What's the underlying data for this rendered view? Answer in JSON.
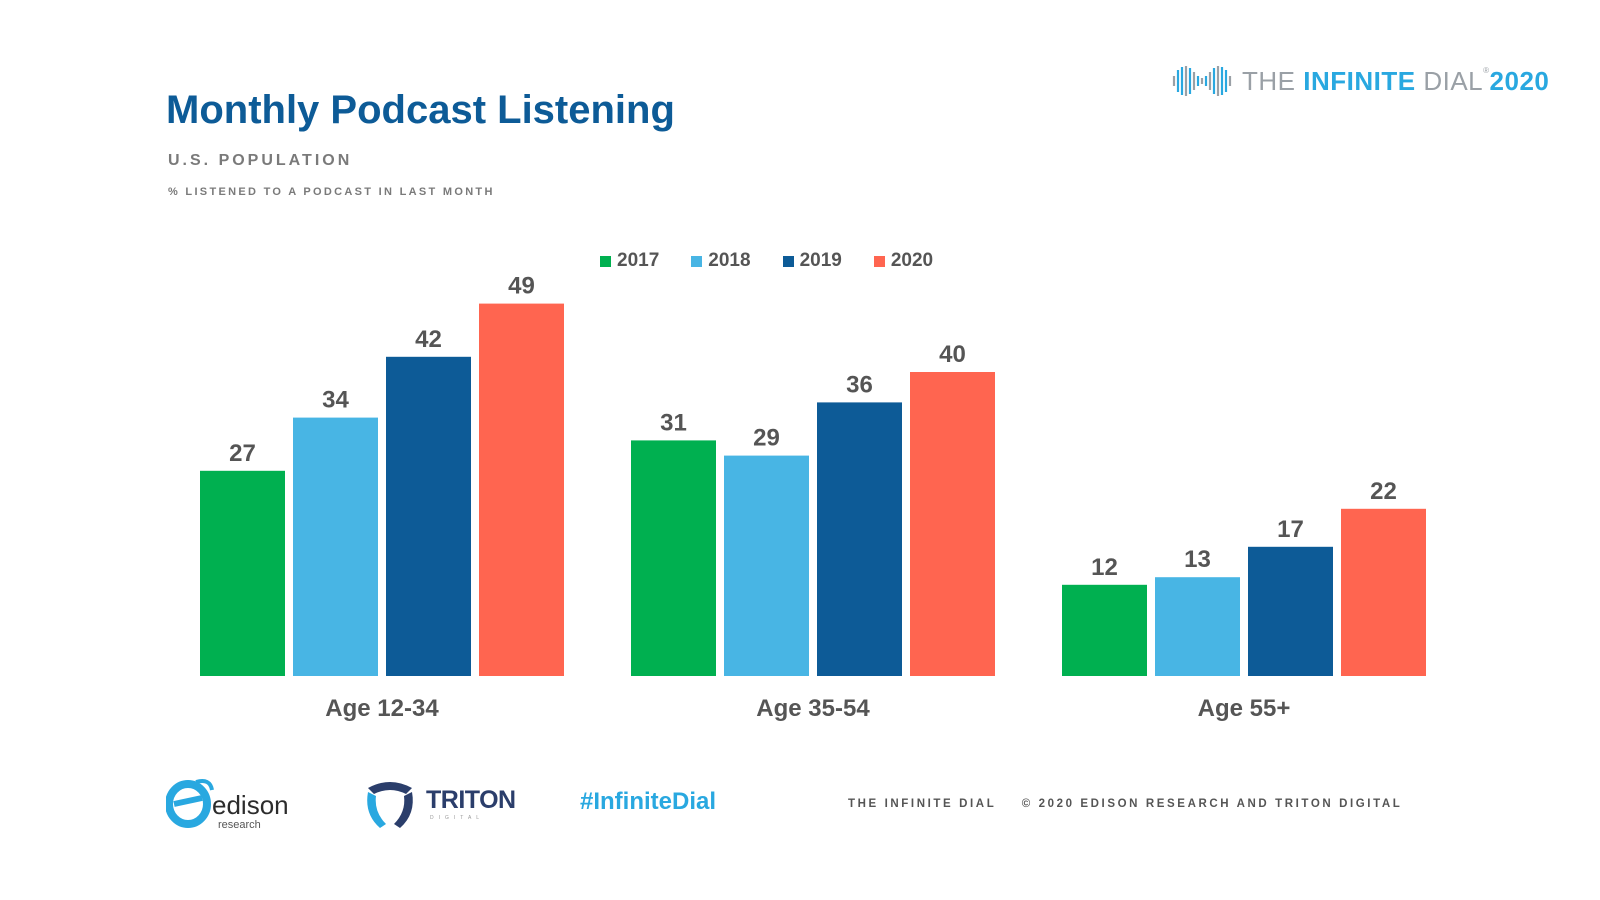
{
  "header": {
    "title": "Monthly Podcast Listening",
    "subtitle": "U.S. POPULATION",
    "measure": "% LISTENED TO A PODCAST IN LAST MONTH"
  },
  "brand": {
    "the": "THE",
    "infinite": "INFINITE",
    "dial": "DIAL",
    "tm": "®",
    "year": "2020"
  },
  "chart_data": {
    "type": "bar",
    "categories": [
      "Age 12-34",
      "Age 35-54",
      "Age 55+"
    ],
    "series": [
      {
        "name": "2017",
        "color": "#00b050",
        "values": [
          27,
          31,
          12
        ]
      },
      {
        "name": "2018",
        "color": "#48b5e4",
        "values": [
          34,
          29,
          13
        ]
      },
      {
        "name": "2019",
        "color": "#0d5b97",
        "values": [
          42,
          36,
          17
        ]
      },
      {
        "name": "2020",
        "color": "#ff6550",
        "values": [
          49,
          40,
          22
        ]
      }
    ],
    "title": "Monthly Podcast Listening",
    "xlabel": "",
    "ylabel": "",
    "ylim": [
      0,
      55
    ],
    "grid": false,
    "legend": "top-center",
    "data_labels": true
  },
  "footer": {
    "edison_word": "edison",
    "edison_sub": "research",
    "triton_word": "TRITON",
    "triton_sub": "DIGITAL",
    "hashtag": "#InfiniteDial",
    "note_left": "THE INFINITE DIAL",
    "note_right": "© 2020 EDISON RESEARCH AND TRITON DIGITAL"
  }
}
